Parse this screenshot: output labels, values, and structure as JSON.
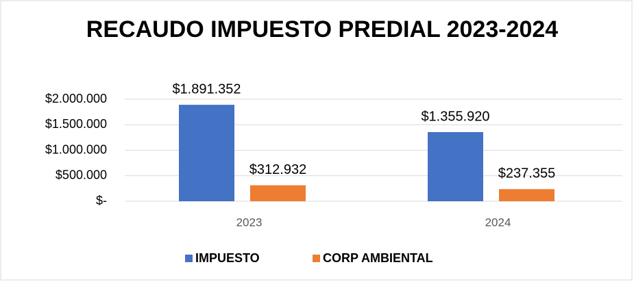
{
  "chart_data": {
    "type": "bar",
    "title": "RECAUDO IMPUESTO PREDIAL 2023-2024",
    "categories": [
      "2023",
      "2024"
    ],
    "series": [
      {
        "name": "IMPUESTO",
        "color": "#4472c4",
        "values": [
          1891352,
          1355920
        ],
        "value_labels": [
          "$1.891.352",
          "$1.355.920"
        ]
      },
      {
        "name": "CORP AMBIENTAL",
        "color": "#ed7d31",
        "values": [
          312932,
          237355
        ],
        "value_labels": [
          "$312.932",
          "$237.355"
        ]
      }
    ],
    "ylim": [
      0,
      2000000
    ],
    "yticks": [
      {
        "value": 0,
        "label": "$-"
      },
      {
        "value": 500000,
        "label": "$500.000"
      },
      {
        "value": 1000000,
        "label": "$1.000.000"
      },
      {
        "value": 1500000,
        "label": "$1.500.000"
      },
      {
        "value": 2000000,
        "label": "$2.000.000"
      }
    ],
    "grid": true,
    "legend": "bottom"
  }
}
